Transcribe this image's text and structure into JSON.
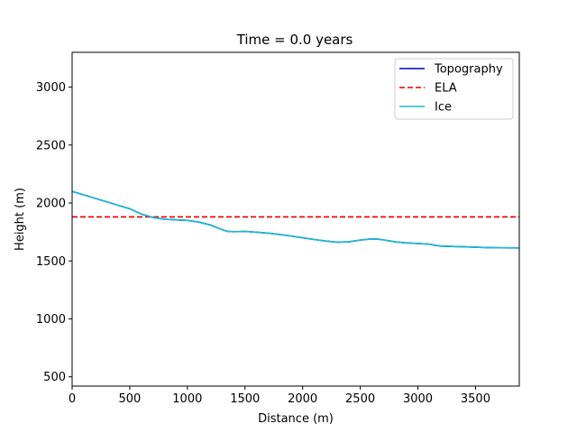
{
  "chart_data": {
    "type": "line",
    "title": "Time = 0.0 years",
    "xlabel": "Distance (m)",
    "ylabel": "Height (m)",
    "xlim": [
      0,
      3880
    ],
    "ylim": [
      420,
      3300
    ],
    "xticks": [
      0,
      500,
      1000,
      1500,
      2000,
      2500,
      3000,
      3500
    ],
    "yticks": [
      500,
      1000,
      1500,
      2000,
      2500,
      3000
    ],
    "grid": false,
    "legend_position": "top-right",
    "series": [
      {
        "name": "Topography",
        "color": "#0000bb",
        "style": "solid",
        "x": [
          0,
          100,
          200,
          300,
          400,
          500,
          600,
          700,
          800,
          900,
          1000,
          1100,
          1200,
          1300,
          1350,
          1400,
          1500,
          1600,
          1700,
          1800,
          1900,
          2000,
          2100,
          2200,
          2300,
          2400,
          2500,
          2600,
          2650,
          2700,
          2800,
          2900,
          3000,
          3100,
          3150,
          3200,
          3300,
          3400,
          3500,
          3600,
          3700,
          3880
        ],
        "y": [
          2100,
          2070,
          2040,
          2010,
          1980,
          1950,
          1905,
          1875,
          1860,
          1855,
          1850,
          1835,
          1810,
          1770,
          1755,
          1752,
          1755,
          1748,
          1740,
          1728,
          1715,
          1700,
          1685,
          1672,
          1662,
          1665,
          1680,
          1690,
          1688,
          1682,
          1665,
          1655,
          1650,
          1645,
          1635,
          1628,
          1625,
          1622,
          1618,
          1615,
          1613,
          1612
        ]
      },
      {
        "name": "ELA",
        "color": "#e00000",
        "style": "dashed",
        "x": [
          0,
          3880
        ],
        "y": [
          1880,
          1880
        ]
      },
      {
        "name": "Ice",
        "color": "#17becf",
        "style": "solid",
        "x": [
          0,
          100,
          200,
          300,
          400,
          500,
          600,
          700,
          800,
          900,
          1000,
          1100,
          1200,
          1300,
          1350,
          1400,
          1500,
          1600,
          1700,
          1800,
          1900,
          2000,
          2100,
          2200,
          2300,
          2400,
          2500,
          2600,
          2650,
          2700,
          2800,
          2900,
          3000,
          3100,
          3150,
          3200,
          3300,
          3400,
          3500,
          3600,
          3700,
          3880
        ],
        "y": [
          2100,
          2070,
          2040,
          2010,
          1980,
          1950,
          1905,
          1875,
          1860,
          1855,
          1850,
          1835,
          1810,
          1770,
          1755,
          1752,
          1755,
          1748,
          1740,
          1728,
          1715,
          1700,
          1685,
          1672,
          1662,
          1665,
          1680,
          1690,
          1688,
          1682,
          1665,
          1655,
          1650,
          1645,
          1635,
          1628,
          1625,
          1622,
          1618,
          1615,
          1613,
          1612
        ]
      }
    ]
  }
}
